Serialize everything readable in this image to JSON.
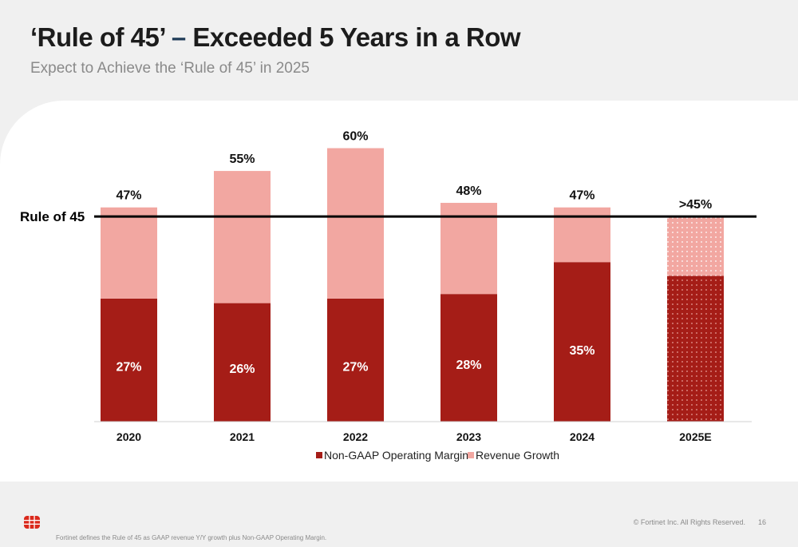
{
  "header": {
    "title_part1": "‘Rule of 45’",
    "title_dash": "–",
    "title_part2": "Exceeded 5 Years in a Row",
    "subtitle": "Expect to Achieve the ‘Rule of 45’ in 2025"
  },
  "chart_data": {
    "type": "bar",
    "stacked": true,
    "categories": [
      "2020",
      "2021",
      "2022",
      "2023",
      "2024",
      "2025E"
    ],
    "series": [
      {
        "name": "Non-GAAP Operating Margin",
        "values": [
          27,
          26,
          27,
          28,
          35,
          32
        ],
        "color": "#a51d17"
      },
      {
        "name": "Revenue Growth",
        "values": [
          20,
          29,
          33,
          20,
          12,
          13
        ],
        "color": "#f2a7a1"
      }
    ],
    "segment_labels": [
      "27%",
      "26%",
      "27%",
      "28%",
      "35%",
      ""
    ],
    "total_labels": [
      "47%",
      "55%",
      "60%",
      "48%",
      "47%",
      ">45%"
    ],
    "estimate_categories": [
      "2025E"
    ],
    "reference_line": {
      "label": "Rule of 45",
      "value": 45
    },
    "ylim": [
      0,
      65
    ],
    "legend_position": "bottom",
    "grid": false
  },
  "footer": {
    "note": "Fortinet defines the Rule of 45 as GAAP revenue Y/Y growth plus Non-GAAP Operating Margin.",
    "copyright": "© Fortinet Inc. All Rights Reserved.",
    "page_number": "16",
    "logo_icon": "fortinet-logo-icon"
  }
}
